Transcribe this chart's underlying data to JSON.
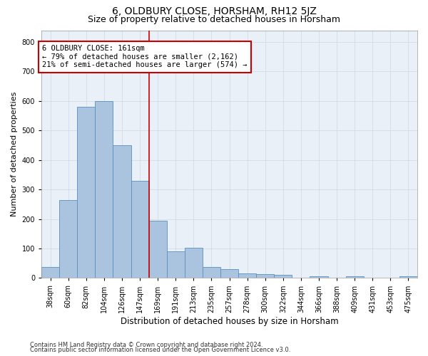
{
  "title": "6, OLDBURY CLOSE, HORSHAM, RH12 5JZ",
  "subtitle": "Size of property relative to detached houses in Horsham",
  "xlabel": "Distribution of detached houses by size in Horsham",
  "ylabel": "Number of detached properties",
  "footer_line1": "Contains HM Land Registry data © Crown copyright and database right 2024.",
  "footer_line2": "Contains public sector information licensed under the Open Government Licence v3.0.",
  "bar_labels": [
    "38sqm",
    "60sqm",
    "82sqm",
    "104sqm",
    "126sqm",
    "147sqm",
    "169sqm",
    "191sqm",
    "213sqm",
    "235sqm",
    "257sqm",
    "278sqm",
    "300sqm",
    "322sqm",
    "344sqm",
    "366sqm",
    "388sqm",
    "409sqm",
    "431sqm",
    "453sqm",
    "475sqm"
  ],
  "bar_values": [
    37,
    265,
    580,
    600,
    450,
    330,
    195,
    90,
    103,
    37,
    30,
    15,
    12,
    10,
    0,
    6,
    0,
    7,
    0,
    0,
    6
  ],
  "bar_color": "#aac4e0",
  "bar_edge_color": "#5a8fc0",
  "annotation_line1": "6 OLDBURY CLOSE: 161sqm",
  "annotation_line2": "← 79% of detached houses are smaller (2,162)",
  "annotation_line3": "21% of semi-detached houses are larger (574) →",
  "vline_x": 5.5,
  "vline_color": "#cc0000",
  "box_color": "#cc0000",
  "ylim": [
    0,
    840
  ],
  "yticks": [
    0,
    100,
    200,
    300,
    400,
    500,
    600,
    700,
    800
  ],
  "grid_color": "#c8d8e8",
  "bg_color": "#eaf0f8",
  "title_fontsize": 10,
  "subtitle_fontsize": 9,
  "tick_fontsize": 7,
  "ylabel_fontsize": 8,
  "xlabel_fontsize": 8.5,
  "annotation_fontsize": 7.5,
  "footer_fontsize": 6
}
